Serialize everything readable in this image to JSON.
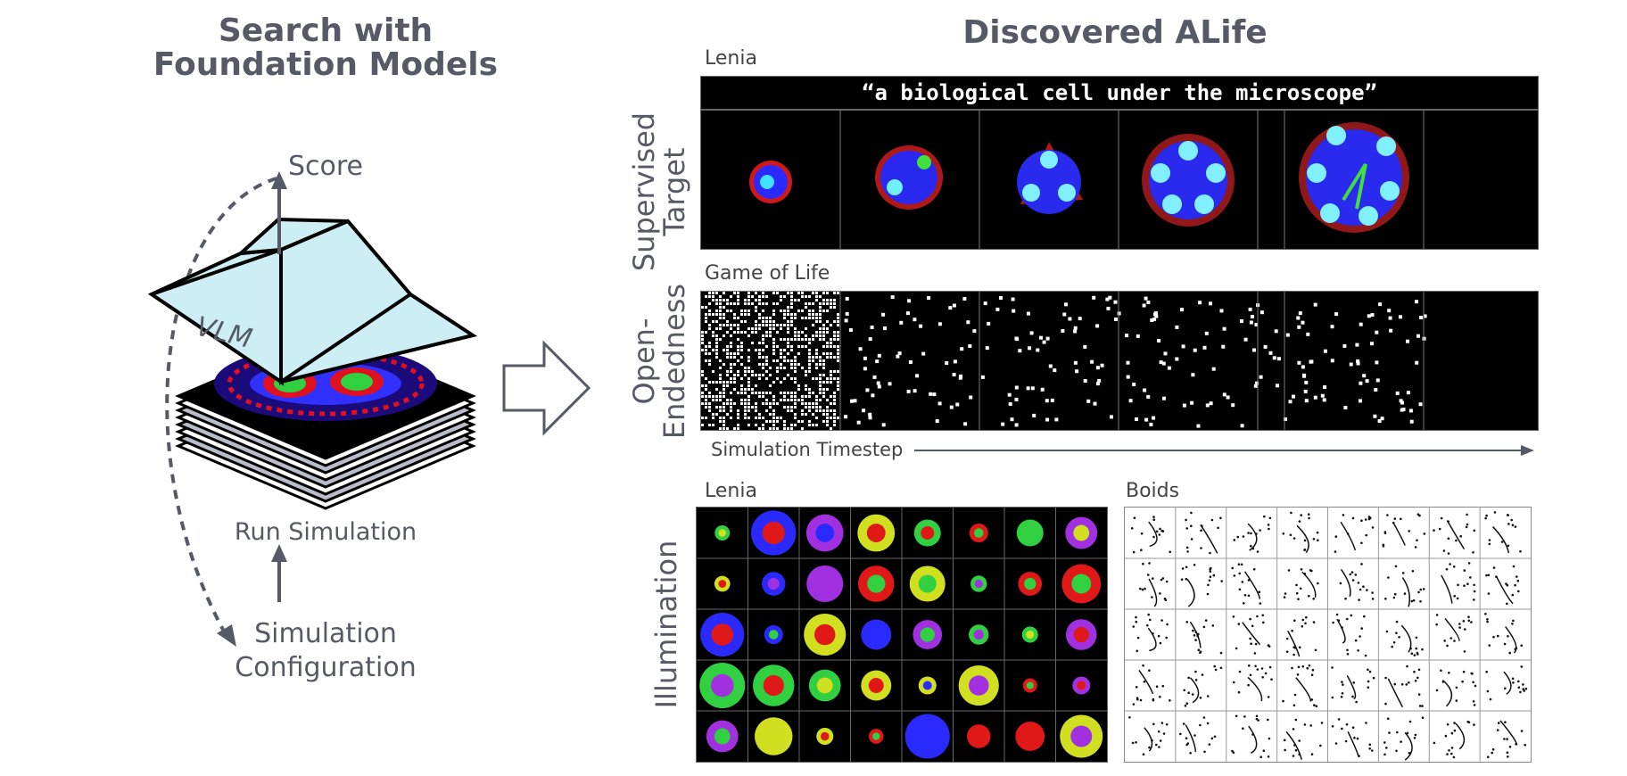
{
  "left": {
    "title_line1": "Search with",
    "title_line2": "Foundation Models",
    "score": "Score",
    "vlm": "VLM",
    "run_simulation": "Run Simulation",
    "config_line1": "Simulation",
    "config_line2": "Configuration"
  },
  "right": {
    "title": "Discovered ALife",
    "row1": {
      "side_line1": "Supervised",
      "side_line2": "Target",
      "substrate": "Lenia",
      "prompt": "“a biological cell under the microscope”"
    },
    "row2": {
      "side_line1": "Open-",
      "side_line2": "Endedness",
      "substrate": "Game of Life",
      "timestep": "Simulation Timestep"
    },
    "row3": {
      "side": "Illumination",
      "lenia": "Lenia",
      "boids": "Boids"
    }
  },
  "colors": {
    "text": "#555a66",
    "vlm_face": "#cdeef5",
    "arrow": "#555a66"
  }
}
